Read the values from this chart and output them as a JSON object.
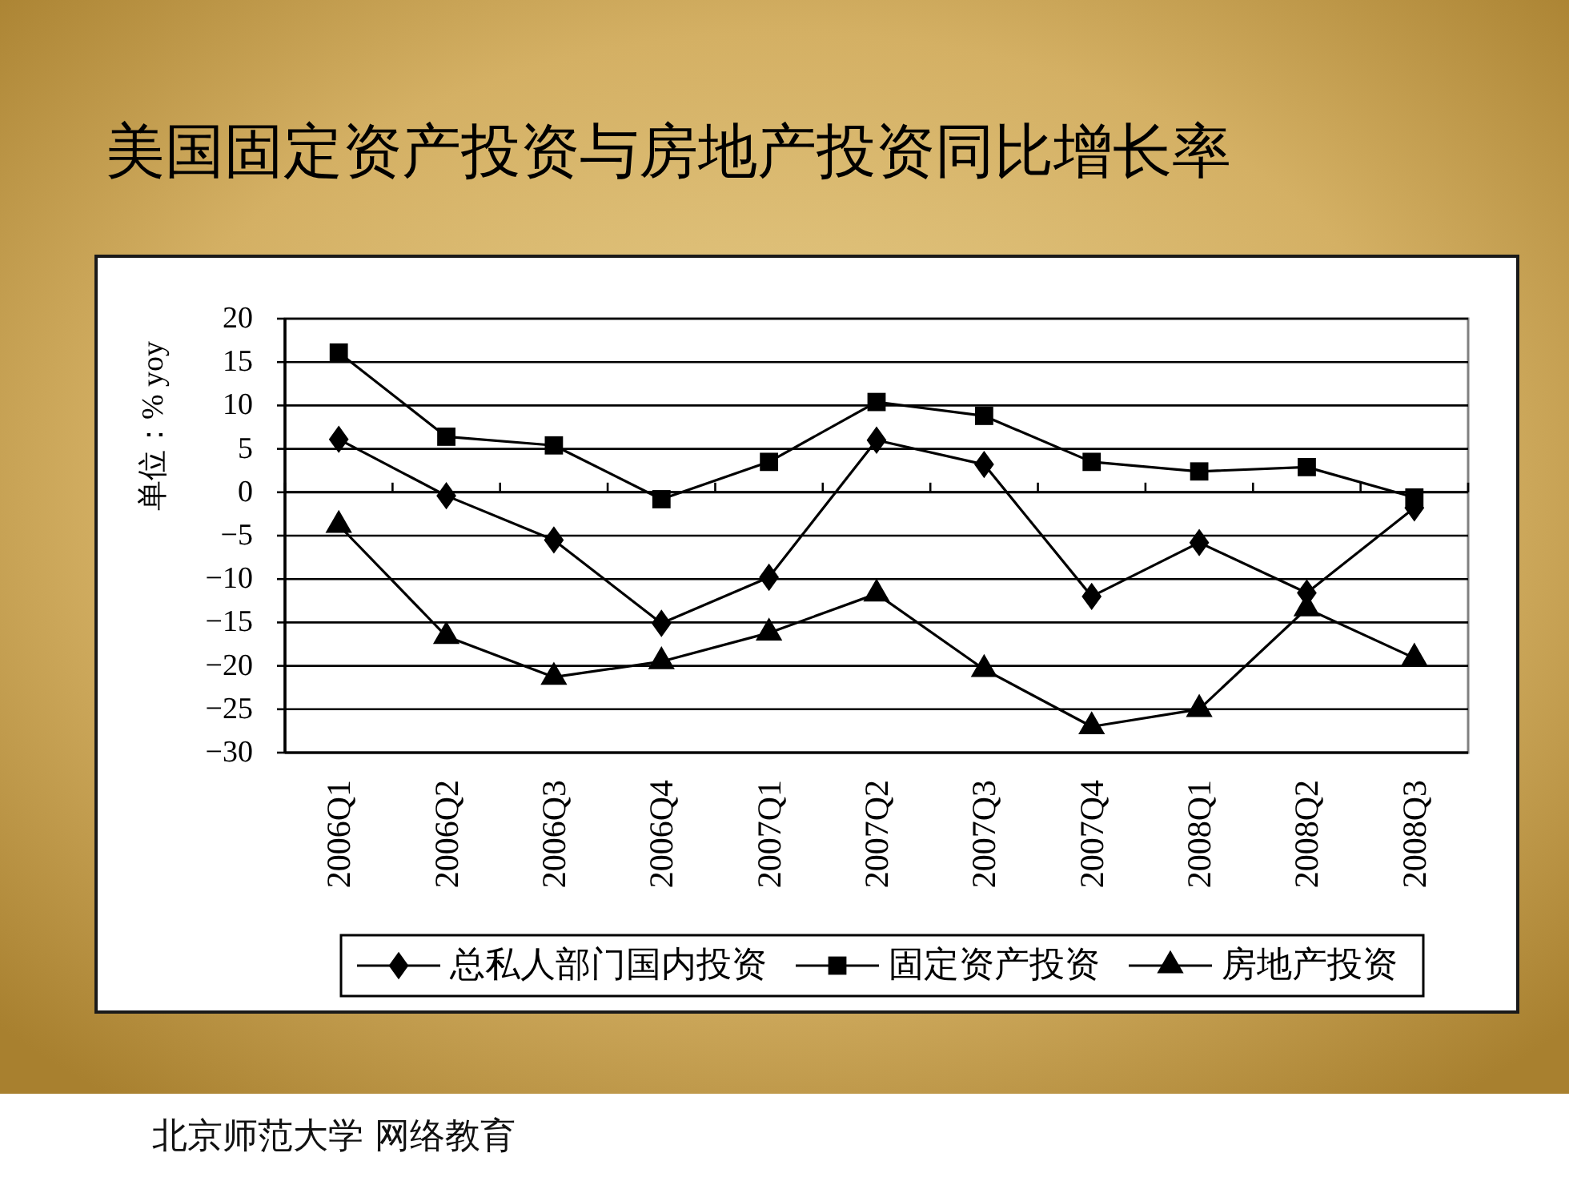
{
  "chart_data": {
    "type": "line",
    "title": "美国固定资产投资与房地产投资同比增长率",
    "ylabel": "单位：% yoy",
    "categories": [
      "2006Q1",
      "2006Q2",
      "2006Q3",
      "2006Q4",
      "2007Q1",
      "2007Q2",
      "2007Q3",
      "2007Q4",
      "2008Q1",
      "2008Q2",
      "2008Q3"
    ],
    "series": [
      {
        "name": "总私人部门国内投资",
        "color": "#000000",
        "marker": "diamond",
        "values": [
          6.1,
          -0.4,
          -5.5,
          -15.1,
          -9.8,
          6.0,
          3.2,
          -12.0,
          -5.8,
          -11.6,
          -1.8
        ]
      },
      {
        "name": "固定资产投资",
        "color": "#000000",
        "marker": "square",
        "values": [
          16.1,
          6.4,
          5.4,
          -0.8,
          3.5,
          10.4,
          8.8,
          3.5,
          2.4,
          2.9,
          -0.6
        ]
      },
      {
        "name": "房地产投资",
        "color": "#000000",
        "marker": "triangle",
        "values": [
          -3.8,
          -16.6,
          -21.3,
          -19.5,
          -16.2,
          -11.7,
          -20.4,
          -27.0,
          -25.0,
          -13.4,
          -19.1
        ]
      }
    ],
    "ylim": [
      -30,
      20
    ],
    "yticks": [
      -30,
      -25,
      -20,
      -15,
      -10,
      -5,
      0,
      5,
      10,
      15,
      20
    ],
    "grid": "y",
    "legend": "bottom",
    "line_style": "solid",
    "annotations": [
      "北京师范大学 网络教育"
    ]
  }
}
